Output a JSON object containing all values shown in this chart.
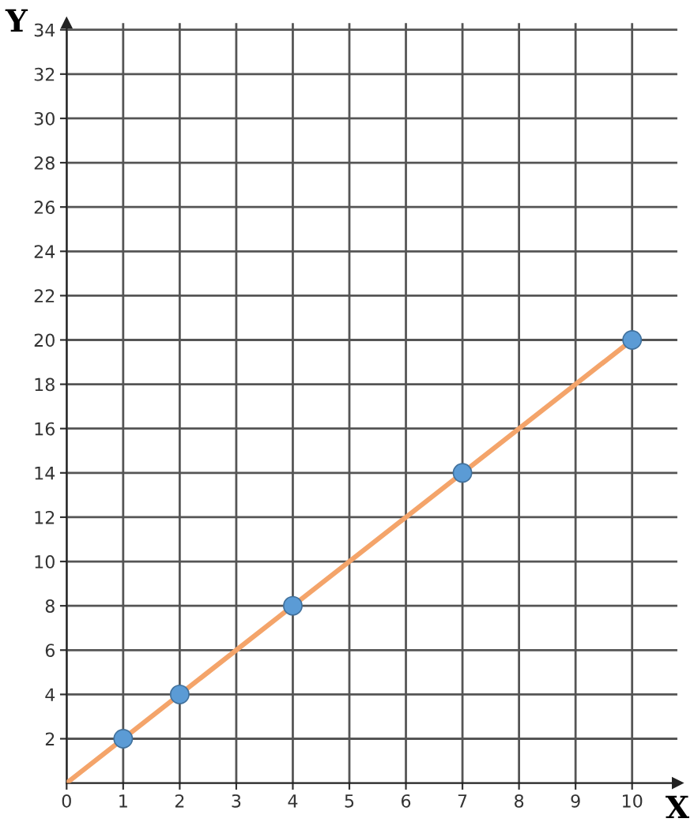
{
  "chart_data": {
    "type": "scatter",
    "xlabel": "X",
    "ylabel": "Y",
    "xlim": [
      0,
      10.8
    ],
    "ylim": [
      0,
      34.3
    ],
    "xticks": [
      0,
      1,
      2,
      3,
      4,
      5,
      6,
      7,
      8,
      9,
      10
    ],
    "yticks": [
      2,
      4,
      6,
      8,
      10,
      12,
      14,
      16,
      18,
      20,
      22,
      24,
      26,
      28,
      30,
      32,
      34
    ],
    "grid": true,
    "series": [
      {
        "type": "line",
        "color": "#f4a46a",
        "x": [
          0,
          10
        ],
        "values": [
          0,
          20
        ],
        "marker": "none"
      },
      {
        "color": "#5b9bd5",
        "x": [
          1,
          2,
          4,
          7,
          10
        ],
        "values": [
          2,
          4,
          8,
          14,
          20
        ],
        "marker": "circle"
      }
    ]
  }
}
